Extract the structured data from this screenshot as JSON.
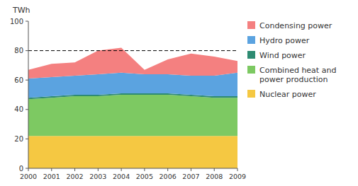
{
  "chart_data": {
    "type": "area",
    "stacked": true,
    "y_label": "TWh",
    "x": [
      2000,
      2001,
      2002,
      2003,
      2004,
      2005,
      2006,
      2007,
      2008,
      2009
    ],
    "xlim": [
      2000,
      2009
    ],
    "xticks": [
      2000,
      2001,
      2002,
      2003,
      2004,
      2005,
      2006,
      2007,
      2008,
      2009
    ],
    "ylim": [
      0,
      100
    ],
    "yticks": [
      0,
      20,
      40,
      60,
      80,
      100
    ],
    "hline": 80,
    "grid": false,
    "legend": "right",
    "series": [
      {
        "name": "Nuclear power",
        "color": "#F5C842",
        "values": [
          22,
          22,
          22,
          22,
          22,
          22,
          22,
          22,
          22,
          22
        ]
      },
      {
        "name": "Combined heat and\npower production",
        "color": "#7DC962",
        "values": [
          25,
          26,
          27,
          27,
          28,
          28,
          28,
          27,
          26,
          26
        ]
      },
      {
        "name": "Wind power",
        "color": "#2E8B72",
        "values": [
          1,
          1,
          1,
          1,
          1,
          1,
          1,
          1,
          1,
          1
        ]
      },
      {
        "name": "Hydro power",
        "color": "#5BA3E0",
        "values": [
          13,
          13,
          13,
          14,
          14,
          13,
          13,
          13,
          14,
          16
        ]
      },
      {
        "name": "Condensing power",
        "color": "#F48080",
        "values": [
          6,
          9,
          9,
          16,
          17,
          3,
          10,
          15,
          13,
          8
        ]
      }
    ]
  }
}
